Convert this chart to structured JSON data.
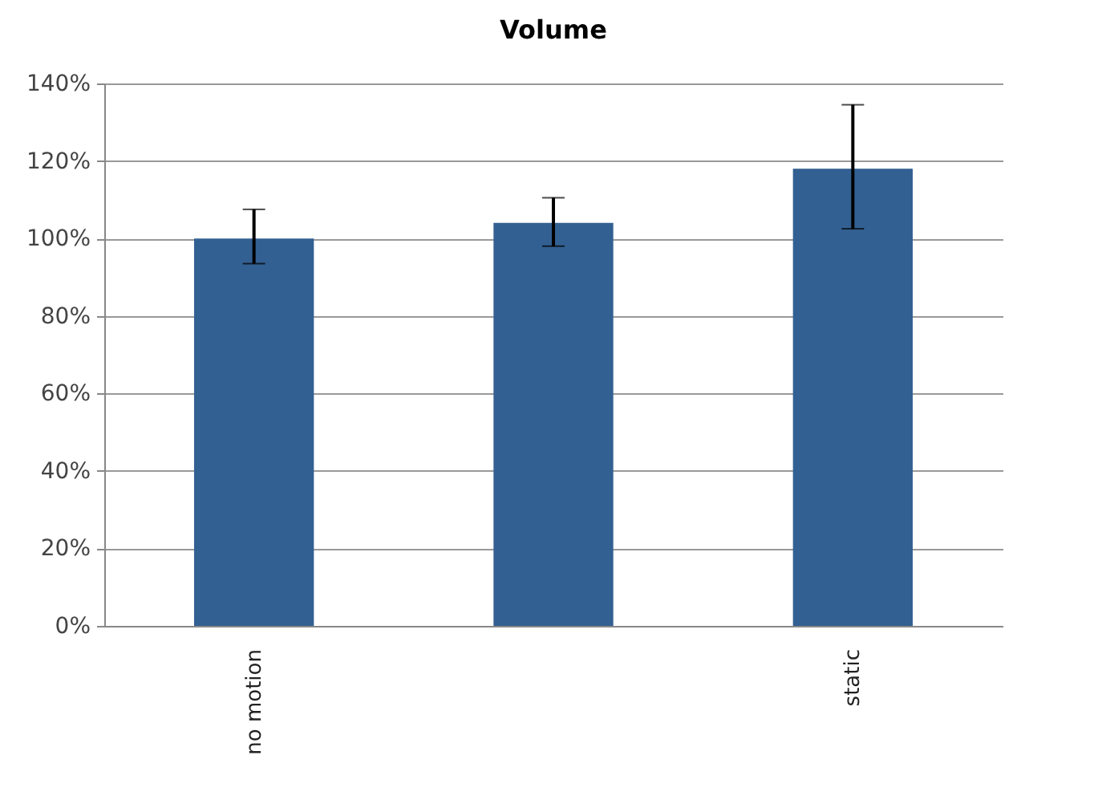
{
  "chart_data": {
    "type": "bar",
    "title": "Volume",
    "categories": [
      "no motion",
      null,
      "static"
    ],
    "values": [
      100,
      104,
      118
    ],
    "errors": [
      [
        93.5,
        107.5
      ],
      [
        98,
        110.5
      ],
      [
        102.5,
        134.5
      ]
    ],
    "color": "#336092",
    "ylim": [
      0,
      140
    ],
    "yticks": [
      {
        "value": 0,
        "label": "0%"
      },
      {
        "value": 20,
        "label": "20%"
      },
      {
        "value": 40,
        "label": "40%"
      },
      {
        "value": 60,
        "label": "60%"
      },
      {
        "value": 80,
        "label": "80%"
      },
      {
        "value": 100,
        "label": "100%"
      },
      {
        "value": 120,
        "label": "120%"
      },
      {
        "value": 140,
        "label": "140%"
      }
    ],
    "grid": "y"
  }
}
